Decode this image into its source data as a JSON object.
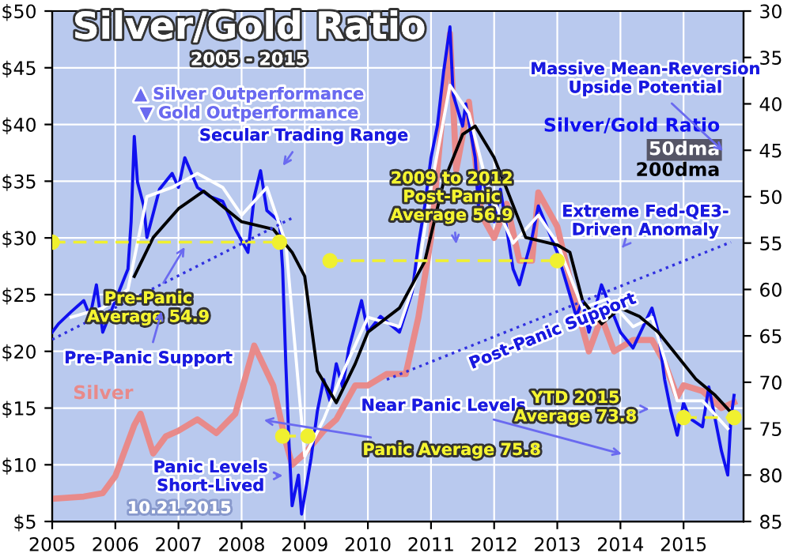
{
  "chart_data": {
    "type": "line",
    "title": "Silver/Gold Ratio",
    "subtitle": "2005 - 2015",
    "xlim": [
      2005,
      2015.95
    ],
    "xticks": [
      2005,
      2006,
      2007,
      2008,
      2009,
      2010,
      2011,
      2012,
      2013,
      2014,
      2015
    ],
    "ylim": [
      5,
      50
    ],
    "yticks": [
      {
        "value": 5,
        "label": "$5"
      },
      {
        "value": 10,
        "label": "$10"
      },
      {
        "value": 15,
        "label": "$15"
      },
      {
        "value": 20,
        "label": "$20"
      },
      {
        "value": 25,
        "label": "$25"
      },
      {
        "value": 30,
        "label": "$30"
      },
      {
        "value": 35,
        "label": "$35"
      },
      {
        "value": 40,
        "label": "$40"
      },
      {
        "value": 45,
        "label": "$45"
      },
      {
        "value": 50,
        "label": "$50"
      }
    ],
    "y2lim": [
      85,
      30
    ],
    "y2ticks": [
      30,
      35,
      40,
      45,
      50,
      55,
      60,
      65,
      70,
      75,
      80,
      85
    ],
    "grid": true,
    "series": [
      {
        "name": "Silver",
        "color": "#e88a8a",
        "axis": "y",
        "x": [
          2005.0,
          2005.5,
          2005.8,
          2006.0,
          2006.3,
          2006.4,
          2006.6,
          2006.8,
          2007.0,
          2007.3,
          2007.6,
          2007.9,
          2008.2,
          2008.5,
          2008.7,
          2008.8,
          2009.0,
          2009.3,
          2009.5,
          2009.8,
          2010.0,
          2010.3,
          2010.6,
          2010.8,
          2011.0,
          2011.3,
          2011.4,
          2011.6,
          2011.8,
          2012.0,
          2012.2,
          2012.4,
          2012.6,
          2012.7,
          2012.9,
          2013.0,
          2013.3,
          2013.5,
          2013.7,
          2013.9,
          2014.2,
          2014.5,
          2014.7,
          2014.9,
          2015.0,
          2015.3,
          2015.6,
          2015.8
        ],
        "values": [
          7,
          7.2,
          7.5,
          9,
          13.5,
          14.5,
          11,
          12.5,
          13,
          14,
          12.8,
          14.5,
          20.5,
          17,
          12,
          10,
          11,
          13,
          14,
          17,
          17,
          18,
          18,
          23,
          30,
          48,
          36,
          42,
          32,
          30,
          33,
          28,
          28,
          34,
          32,
          31,
          24,
          20,
          23,
          20,
          21,
          21,
          19,
          16,
          17,
          16.5,
          15,
          15.5
        ]
      },
      {
        "name": "Silver/Gold Ratio",
        "color": "#1010f0",
        "axis": "y2",
        "x": [
          2005.0,
          2005.1,
          2005.3,
          2005.5,
          2005.6,
          2005.7,
          2005.8,
          2006.0,
          2006.2,
          2006.25,
          2006.3,
          2006.35,
          2006.45,
          2006.5,
          2006.7,
          2006.9,
          2007.0,
          2007.1,
          2007.3,
          2007.5,
          2007.7,
          2007.9,
          2008.1,
          2008.2,
          2008.3,
          2008.4,
          2008.6,
          2008.65,
          2008.7,
          2008.75,
          2008.8,
          2008.9,
          2008.95,
          2009.1,
          2009.2,
          2009.3,
          2009.4,
          2009.5,
          2009.6,
          2009.7,
          2009.9,
          2010.0,
          2010.2,
          2010.5,
          2010.7,
          2010.8,
          2010.9,
          2011.0,
          2011.1,
          2011.2,
          2011.3,
          2011.35,
          2011.5,
          2011.55,
          2011.7,
          2011.75,
          2011.8,
          2012.0,
          2012.1,
          2012.3,
          2012.4,
          2012.6,
          2012.7,
          2013.0,
          2013.3,
          2013.4,
          2013.5,
          2013.7,
          2014.0,
          2014.2,
          2014.5,
          2014.6,
          2014.7,
          2014.8,
          2014.9,
          2015.0,
          2015.1,
          2015.3,
          2015.4,
          2015.6,
          2015.7,
          2015.75,
          2015.8
        ],
        "values": [
          64.6,
          63.7,
          62.4,
          61.2,
          62.9,
          59.5,
          64.6,
          61.2,
          57.8,
          52.7,
          43.5,
          48.4,
          51,
          54.4,
          49.2,
          47.5,
          49,
          45.8,
          49,
          50,
          50.5,
          53.5,
          56,
          50,
          47.2,
          51.5,
          52.7,
          57.8,
          68,
          76.5,
          83.3,
          80,
          84.2,
          78.2,
          73.1,
          69.7,
          72,
          68,
          70.5,
          66.3,
          61.2,
          64.6,
          62.9,
          64.6,
          60.3,
          55.2,
          51,
          45.8,
          42.4,
          36.5,
          31.7,
          39,
          42.4,
          40,
          45.8,
          51,
          47.5,
          52.7,
          49.2,
          57.8,
          59.5,
          54.4,
          51,
          56,
          62.9,
          61.2,
          64.6,
          59.5,
          64.6,
          66.3,
          62,
          64.6,
          69.7,
          73.1,
          75.7,
          72.2,
          73.9,
          74.8,
          70.5,
          77.4,
          80,
          73.9,
          71.4
        ]
      },
      {
        "name": "50dma",
        "color": "#ffffff",
        "axis": "y2",
        "x": [
          2005.3,
          2005.8,
          2006.2,
          2006.5,
          2006.9,
          2007.3,
          2007.7,
          2008.0,
          2008.4,
          2008.7,
          2009.0,
          2009.3,
          2009.6,
          2010.0,
          2010.5,
          2010.8,
          2011.0,
          2011.3,
          2011.6,
          2011.9,
          2012.3,
          2012.7,
          2013.0,
          2013.4,
          2013.8,
          2014.2,
          2014.5,
          2014.9,
          2015.3,
          2015.7
        ],
        "values": [
          63,
          62,
          60,
          50,
          49,
          47.5,
          49,
          52,
          49,
          55,
          78,
          74,
          69,
          63,
          64,
          58,
          49,
          38,
          41,
          49,
          55,
          52,
          55,
          62,
          61,
          64,
          63,
          72,
          72,
          75
        ]
      },
      {
        "name": "200dma",
        "color": "#000000",
        "axis": "y2",
        "x": [
          2006.3,
          2006.6,
          2007.0,
          2007.4,
          2008.0,
          2008.5,
          2008.8,
          2009.0,
          2009.2,
          2009.5,
          2009.8,
          2010.0,
          2010.5,
          2010.9,
          2011.2,
          2011.5,
          2011.7,
          2012.0,
          2012.2,
          2012.5,
          2013.0,
          2013.2,
          2013.4,
          2013.7,
          2014.0,
          2014.3,
          2014.6,
          2014.8,
          2015.2,
          2015.5,
          2015.8
        ],
        "values": [
          58.6,
          54.4,
          51.3,
          49.4,
          52.7,
          53.5,
          56,
          58.6,
          68.8,
          72.2,
          68,
          64.6,
          62,
          57,
          48.4,
          43.3,
          42.4,
          45.8,
          49.2,
          54.4,
          55.2,
          56,
          61.2,
          63.7,
          62,
          62.9,
          64.6,
          66.3,
          69.7,
          71.4,
          73.6
        ]
      },
      {
        "color": "#f0f030",
        "axis": "y2",
        "line_style": "dashed",
        "marker": "circle",
        "x": [
          2005.0,
          2008.6
        ],
        "values": [
          54.9,
          54.9
        ]
      },
      {
        "color": "#f0f030",
        "axis": "y2",
        "line_style": "dashed",
        "marker": "circle",
        "x": [
          2009.4,
          2013.0
        ],
        "values": [
          56.9,
          56.9
        ]
      },
      {
        "color": "#f0f030",
        "axis": "y2",
        "line_style": "dashed",
        "marker": "circle",
        "x": [
          2008.65,
          2009.05
        ],
        "values": [
          75.8,
          75.8
        ]
      },
      {
        "color": "#f0f030",
        "axis": "y2",
        "line_style": "dashed",
        "marker": "circle",
        "x": [
          2015.0,
          2015.8
        ],
        "values": [
          73.8,
          73.8
        ]
      },
      {
        "color": "#3030e0",
        "axis": "y2",
        "line_style": "dotted",
        "x": [
          2005.0,
          2008.8
        ],
        "values": [
          65.4,
          52.3
        ]
      },
      {
        "color": "#3030e0",
        "axis": "y2",
        "line_style": "dotted",
        "x": [
          2010.3,
          2015.75
        ],
        "values": [
          69.7,
          54.9
        ]
      }
    ],
    "annotations": [
      "▲ Silver Outperformance",
      "▼ Gold Outperformance",
      "Secular Trading Range",
      "2009 to 2012\nPost-Panic\nAverage 56.9",
      "Massive Mean-Reversion\nUpside Potential",
      "Extreme Fed-QE3-\nDriven Anomaly",
      "Pre-Panic\nAverage 54.9",
      "Pre-Panic Support",
      "Post-Panic Support",
      "Near Panic Levels",
      "Panic Average 75.8",
      "YTD 2015\nAverage 73.8",
      "Panic Levels\nShort-Lived",
      "10.21.2015"
    ]
  }
}
